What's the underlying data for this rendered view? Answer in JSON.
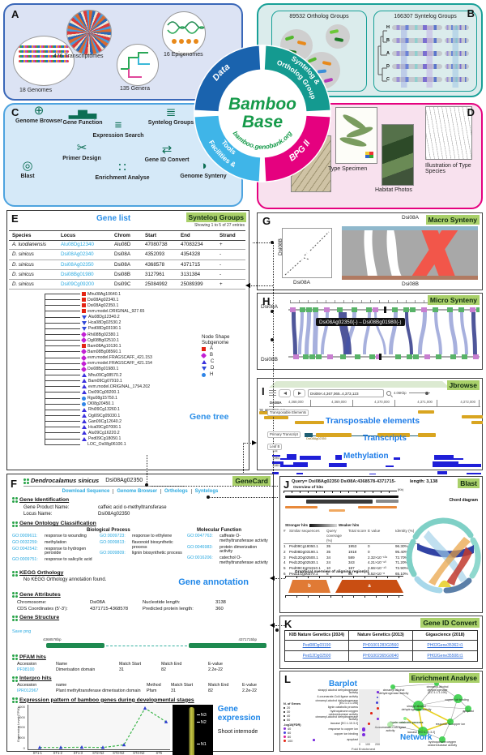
{
  "panelA": {
    "tag": "A",
    "genomes": "18 Genomes",
    "transcriptomes": "476 Transcriptomes",
    "genera": "135 Genera",
    "epigenomes": "16 Epigenomes"
  },
  "hub": {
    "title1": "Bamboo",
    "title2": "Base",
    "url": "bamboo.genobank.org",
    "seg_data": "Data",
    "seg_syntelog1": "Syntelog &",
    "seg_syntelog2": "Ortholog Group",
    "seg_bpg": "BPG II",
    "seg_fac1": "Facilities &",
    "seg_fac2": "Tools",
    "colors": {
      "data": "#1a63ae",
      "syntelog": "#149a90",
      "bpg": "#e5017f",
      "facilities": "#3fb5e8",
      "title": "#169a4a"
    }
  },
  "panelB": {
    "tag": "B",
    "ortholog_title": "89532 Ortholog Groups",
    "syntelog_title": "166307 Syntelog Groups",
    "taxa": [
      {
        "k": "H"
      },
      {
        "k": "B"
      },
      {
        "k": "A"
      },
      {
        "k": "D"
      },
      {
        "k": "C"
      }
    ]
  },
  "panelC": {
    "tag": "C",
    "tools": [
      {
        "label": "Gene Function",
        "name": "gene-function-icon",
        "glyph": "▂▅▃"
      },
      {
        "label": "Expression Search",
        "name": "expression-search-icon",
        "glyph": "≡"
      },
      {
        "label": "Syntelog Groups",
        "name": "syntelog-groups-icon",
        "glyph": "≣"
      },
      {
        "label": "Blast",
        "name": "blast-icon",
        "glyph": "◎"
      },
      {
        "label": "Primer Design",
        "name": "primer-design-icon",
        "glyph": "✂"
      },
      {
        "label": "Enrichment Analyse",
        "name": "enrichment-analyse-icon",
        "glyph": "∷"
      },
      {
        "label": "Gene ID Convert",
        "name": "gene-id-convert-icon",
        "glyph": "⇄"
      },
      {
        "label": "Genome Synteny",
        "name": "genome-synteny-icon",
        "glyph": "◑"
      },
      {
        "label": "Genome Browser",
        "name": "genome-browser-icon",
        "glyph": "⊕"
      }
    ]
  },
  "panelD": {
    "tag": "D",
    "cap_specimen": "Type Specimen",
    "cap_habitat": "Habitat Photos",
    "cap_illustration": "Illustration of Type Species"
  },
  "panelE": {
    "tag": "E",
    "badge": "Syntelog Groups",
    "title": "Gene list",
    "showing": "Showing 1 to 5 of 27 entries",
    "cols": [
      "Species",
      "Locus",
      "Chrom",
      "Start",
      "End",
      "Strand"
    ],
    "rows": [
      {
        "species": "A. luodianensis",
        "locus": "Alu08Dg12340",
        "chrom": "Alu08D",
        "start": "47080738",
        "end": "47083234",
        "strand": "+"
      },
      {
        "species": "D. sinicus",
        "locus": "Dsi08Ag02340",
        "chrom": "Dsi08A",
        "start": "4352093",
        "end": "4354328",
        "strand": "-"
      },
      {
        "species": "D. sinicus",
        "locus": "Dsi08Ag02350",
        "chrom": "Dsi08A",
        "start": "4368578",
        "end": "4371715",
        "strand": "-"
      },
      {
        "species": "D. sinicus",
        "locus": "Dsi08Bg01980",
        "chrom": "Dsi08B",
        "start": "3127961",
        "end": "3131384",
        "strand": "-"
      },
      {
        "species": "D. sinicus",
        "locus": "Dsi09Cg09200",
        "chrom": "Dsi09C",
        "start": "25084992",
        "end": "25089399",
        "strand": "+"
      }
    ],
    "legend_title1": "Node Shape",
    "legend_title2": "Subgenome",
    "legend": [
      {
        "label": "A",
        "sub": "A"
      },
      {
        "label": "B",
        "sub": "B"
      },
      {
        "label": "C",
        "sub": "C"
      },
      {
        "label": "D",
        "sub": "D"
      },
      {
        "label": "H",
        "sub": "H"
      }
    ],
    "tree_caption": "Gene tree",
    "leaves": [
      {
        "n": "Mhu08Ag10640.1",
        "sub": "A"
      },
      {
        "n": "Dsi08Ag02340.1",
        "sub": "A"
      },
      {
        "n": "Dsi08Ag02350.1",
        "sub": "A"
      },
      {
        "n": "evm.model.ORIGINAL_927.65",
        "sub": "A"
      },
      {
        "n": "Alu08Dg12340.2",
        "sub": "D"
      },
      {
        "n": "Hca08Dg02530.2",
        "sub": "D"
      },
      {
        "n": "Ped08Dg03190.1",
        "sub": "D"
      },
      {
        "n": "Rhi08Bg02380.1",
        "sub": "B"
      },
      {
        "n": "Ogl08Bg02510.1",
        "sub": "B"
      },
      {
        "n": "Bam08Ag10130.1",
        "sub": "A"
      },
      {
        "n": "Bam08Bg08560.1",
        "sub": "B"
      },
      {
        "n": "evm.model.FRAGSCAFF_421.153",
        "sub": "B"
      },
      {
        "n": "evm.model.FRAGSCAFF_421.154",
        "sub": "B"
      },
      {
        "n": "Dsi08Bg01980.1",
        "sub": "B"
      },
      {
        "n": "Mhu09Cg08570.2",
        "sub": "C"
      },
      {
        "n": "Bam09Cg07910.1",
        "sub": "C"
      },
      {
        "n": "evm.model.ORIGINAL_1794.202",
        "sub": "C"
      },
      {
        "n": "Dsi09Cg09200.1",
        "sub": "C"
      },
      {
        "n": "Rgu08g15750.1",
        "sub": "H"
      },
      {
        "n": "Ol08g20450.1",
        "sub": "H"
      },
      {
        "n": "Rhi09Cg13260.1",
        "sub": "C"
      },
      {
        "n": "Ogl09Cg05030.1",
        "sub": "C"
      },
      {
        "n": "Gan09Cg12640.2",
        "sub": "C"
      },
      {
        "n": "Hca09Cg07000.1",
        "sub": "C"
      },
      {
        "n": "Alu09Cg16220.2",
        "sub": "C"
      },
      {
        "n": "Ped09Cg18050.1",
        "sub": "C"
      },
      {
        "n": "LOC_Os08g06100.1",
        "sub": "O"
      }
    ]
  },
  "panelG": {
    "tag": "G",
    "badge": "Macro Synteny",
    "dot_x": "Dsi08A",
    "dot_y": "Dsi08B",
    "rib_top": "Dsi08A",
    "rib_bottom": "Dsi08B"
  },
  "panelH": {
    "tag": "H",
    "badge": "Micro Synteny",
    "track_top": "Dsi08A",
    "track_bottom": "Dsi08B",
    "tooltip": "Dsi08Ag02350(-)→Dsi08Bg01980(-)"
  },
  "panelI": {
    "tag": "I",
    "badge": "Jbrowse",
    "location": "Dsi08A:4,367,065..4,373,123",
    "zoom_level": "4.06Kbp",
    "ruler_chrom": "Dsi08A",
    "ruler_ticks": [
      "4,368,000",
      "4,369,000",
      "4,370,000",
      "4,371,000",
      "4,372,000"
    ],
    "track_te": "Transposable Elements",
    "te_labels": [
      "TE_00002687",
      "TE_00001529_INT",
      "TE_00021888",
      "TE_000031"
    ],
    "overlay_te": "Transposable elements",
    "track_transcript": "Primary Transcript",
    "gene_label": "Dsi08Ag02350",
    "overlay_transcript": "Transcripts",
    "track_methyl": "Leaf B",
    "methyl_rows": [
      {
        "m": "CG"
      },
      {
        "m": "CHG"
      },
      {
        "m": "CHH"
      }
    ],
    "overlay_methyl": "Methylation"
  },
  "panelF": {
    "tag": "F",
    "badge": "GeneCard",
    "species": "Dendrocalamus sinicus",
    "locus": "Dsi08Ag02350",
    "links": [
      {
        "label": "Download Sequence"
      },
      {
        "label": "Genome Browser"
      },
      {
        "label": "Orthologs"
      },
      {
        "label": "Syntelogs"
      }
    ],
    "sec_identification": "Gene Identification",
    "kv_product_label": "Gene Product Name:",
    "kv_product": "caffeic acid o-methyltransferase",
    "kv_locus_label": "Locus Name:",
    "kv_locus": "Dsi08Ag02350",
    "sec_go": "Gene Ontology Classification",
    "go_bp_title": "Biological Process",
    "go_mf_title": "Molecular Function",
    "go_col1": [
      {
        "id": "GO:0009611:",
        "desc": "response to wounding"
      },
      {
        "id": "GO:0032259:",
        "desc": "methylation"
      },
      {
        "id": "GO:0042542:",
        "desc": "response to hydrogen peroxide"
      },
      {
        "id": "GO:0009751:",
        "desc": "response to salicylic acid"
      }
    ],
    "go_col2": [
      {
        "id": "GO:0009723:",
        "desc": "response to ethylene"
      },
      {
        "id": "GO:0009813:",
        "desc": "flavonoid biosynthetic process"
      },
      {
        "id": "GO:0009809:",
        "desc": "lignin biosynthetic process"
      }
    ],
    "go_col3": [
      {
        "id": "GO:0047763:",
        "desc": "caffeate O-methyltransferase activity"
      },
      {
        "id": "GO:0046983:",
        "desc": "protein dimerization activity"
      },
      {
        "id": "GO:0016206:",
        "desc": "catechol O-methyltransferase activity"
      }
    ],
    "sec_kegg": "KEGG Orthology",
    "kegg_none": "No KEGG Orthology annotation found.",
    "annot_caption": "Gene annotation",
    "sec_attr": "Gene Attributes",
    "attr": [
      {
        "k": "Chromosome:",
        "v": "Dsi08A"
      },
      {
        "k": "Nucleotide length:",
        "v": "3138"
      },
      {
        "k": "CDS Coordinates (5'-3'):",
        "v": "4371715-4368578"
      },
      {
        "k": "Predicted protein length:",
        "v": "360"
      }
    ],
    "sec_structure": "Gene Structure",
    "save_png": "Save png",
    "coord_left": "4368578bp",
    "coord_right": "4371715bp",
    "sec_pfam": "PFAM hits",
    "pfam_cols": [
      "Accession",
      "Name",
      "Match Start",
      "Match End",
      "E-value"
    ],
    "pfam_row": {
      "acc": "PF08100",
      "name": "Dimerisation domain",
      "start": "31",
      "end": "82",
      "e": "2.2e-22"
    },
    "sec_interpro": "Interpro hits",
    "interpro_cols": [
      "Accession",
      "name",
      "Method",
      "Match Start",
      "Match End",
      "E-value"
    ],
    "interpro_row": {
      "acc": "IPR012967",
      "name": "Plant methyltransferase dimerisation domain",
      "method": "Pfam",
      "start": "31",
      "end": "82",
      "e": "2.2e-22"
    },
    "sec_expr": "Expression pattern of bamboo genes during developmental stages",
    "expr": {
      "ylabel": "Expression Level (TPM)",
      "yticks": [
        {
          "t": "4000"
        },
        {
          "t": "3000"
        },
        {
          "t": "2000"
        },
        {
          "t": "1000"
        },
        {
          "t": "0"
        }
      ],
      "stages": [
        {
          "s": "ST1-1"
        },
        {
          "s": "ST1-2"
        },
        {
          "s": "ST1-3"
        },
        {
          "s": "ST2-N2"
        },
        {
          "s": "ST3-N2"
        },
        {
          "s": "ST4-N2"
        },
        {
          "s": "ST5"
        }
      ],
      "values": [
        20,
        20,
        30,
        20,
        280,
        3900,
        2550
      ],
      "groups": [
        {
          "g": "Slow-growing"
        },
        {
          "g": "Fast-growing"
        },
        {
          "g": "Mature"
        }
      ],
      "caption": "Gene expression",
      "photo_caption": "Shoot internode",
      "photo_labels": [
        {
          "n": "N3"
        },
        {
          "n": "N2"
        },
        {
          "n": "N1"
        }
      ]
    }
  },
  "panelJ": {
    "tag": "J",
    "badge": "Blast",
    "query": "Query= Dsi08Ag02350 Dsi08A:4368578-4371715-",
    "length": "length: 3,138",
    "overview_title": "Overview of hits",
    "stronger": "Stronger hits",
    "weaker": "Weaker hits",
    "unit": "(Kb)",
    "cols": [
      "#",
      "Similar sequences",
      "Query coverage (%)",
      "Total score",
      "E value",
      "Identity (%)"
    ],
    "hits": [
      {
        "n": "1",
        "seq": "Ped09Cg18050.1",
        "cov": "35",
        "score": "1953",
        "e": "0",
        "id": "96.30%"
      },
      {
        "n": "2",
        "seq": "Ped08Dg03190.1",
        "cov": "35",
        "score": "1918",
        "e": "0",
        "id": "95.40%"
      },
      {
        "n": "3",
        "seq": "Ped12Dg02500.1",
        "cov": "34",
        "score": "589",
        "e": "2.32×10⁻¹³⁴",
        "id": "72.70%"
      },
      {
        "n": "4",
        "seq": "Ped12Dg02530.1",
        "cov": "24",
        "score": "343",
        "e": "4.21×10⁻⁹⁰",
        "id": "71.20%"
      },
      {
        "n": "5",
        "seq": "Ped09CKg01810.1",
        "cov": "10",
        "score": "187",
        "e": "2.66×10⁻⁴³",
        "id": "72.90%"
      },
      {
        "n": "6",
        "seq": "Ped11Cg00370.1",
        "cov": "6",
        "score": "66",
        "e": "5.52×10⁻⁸",
        "id": "65.10%"
      }
    ],
    "graphical_title": "Graphical overview of aligning region(s)",
    "region_a": "a",
    "region_b": "b",
    "chord_caption": "Chord diagram"
  },
  "panelK": {
    "tag": "K",
    "badge": "Gene ID Convert",
    "cols": [
      "KIB Nature Genetics (2024)",
      "Nature Genetics (2013)",
      "Gigascience (2018)"
    ],
    "rows": [
      {
        "a": "Ped08Dg03190",
        "b": "PH01001283G0560",
        "c": "PH02Gene35362.t1"
      },
      {
        "a": "Ped12Dg02500",
        "b": "PH01002365G0040",
        "c": "PH02Gene35508.t1"
      }
    ]
  },
  "panelL": {
    "tag": "L",
    "badge": "Enrichment Analyse",
    "barplot_caption": "Barplot",
    "network_caption": "Network",
    "terms": [
      {
        "t": "sinapyl alcohol dehydrogenase activity",
        "dot": "purple"
      },
      {
        "t": "4-coumarate-CoA ligase activity",
        "dot": "blue"
      },
      {
        "t": "cinnamyl-alcohol dehydrogenase [EC:1.1.1.195]",
        "dot": "blue"
      },
      {
        "t": "lignin catabolic process",
        "dot": "red"
      },
      {
        "t": "hydroquinone:oxygen oxidoreductase activity",
        "dot": "red"
      },
      {
        "t": "cinnamyl-alcohol dehydrogenase activity",
        "dot": "purple"
      },
      {
        "t": "laccase [EC:1.10.3.2]",
        "dot": "red"
      },
      {
        "t": "response to copper ion",
        "dot": "purple"
      },
      {
        "t": "copper ion binding",
        "dot": "purple"
      },
      {
        "t": "apoplast",
        "dot": "purple"
      }
    ],
    "xaxis": "Fold Enrichment",
    "xticks": [
      {
        "x": "0"
      },
      {
        "x": "100"
      },
      {
        "x": "200"
      }
    ],
    "legend_genes_title": "N. of Genes",
    "legend_genes": [
      {
        "v": "20"
      },
      {
        "v": "30"
      },
      {
        "v": "40"
      },
      {
        "v": "50"
      }
    ],
    "legend_fdr_title": "-log10(FDR)",
    "legend_fdr": [
      {
        "v": "40",
        "dot": "fdr40"
      },
      {
        "v": "60",
        "dot": "fdr60"
      },
      {
        "v": "80",
        "dot": "fdr80"
      },
      {
        "v": "100",
        "dot": "fdr100"
      }
    ],
    "network_nodes": [
      {
        "t": "cinnamyl alcohol dehydrogenase activity"
      },
      {
        "t": "cinnamyl-alcohol dehydrogenase [EC:1.1.1.195]"
      },
      {
        "t": "copper ion binding"
      },
      {
        "t": "apoplast"
      },
      {
        "t": "sinapyl alcohol dehydrogenase activity"
      },
      {
        "t": "lignin catabolic process"
      },
      {
        "t": "response to copper ion"
      },
      {
        "t": "laccase [EC:1.10.3.2]"
      },
      {
        "t": "4-coumarate-CoA ligase activity"
      },
      {
        "t": "hydroquinone:oxygen oxidoreductase activity"
      }
    ]
  }
}
